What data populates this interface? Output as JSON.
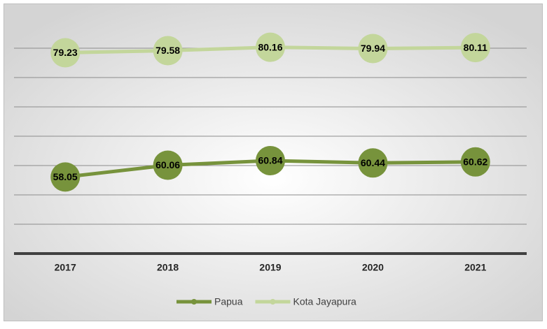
{
  "chart_data": {
    "type": "line",
    "categories": [
      "2017",
      "2018",
      "2019",
      "2020",
      "2021"
    ],
    "series": [
      {
        "name": "Papua",
        "color": "#77933c",
        "values": [
          58.05,
          60.06,
          60.84,
          60.44,
          60.62
        ]
      },
      {
        "name": "Kota Jayapura",
        "color": "#c3d69b",
        "values": [
          79.23,
          79.58,
          80.16,
          79.94,
          80.11
        ]
      }
    ],
    "ylim": [
      45,
      85
    ],
    "yticks": [
      45,
      50,
      55,
      60,
      65,
      70,
      75,
      80
    ],
    "grid": true,
    "legend": "bottom"
  }
}
